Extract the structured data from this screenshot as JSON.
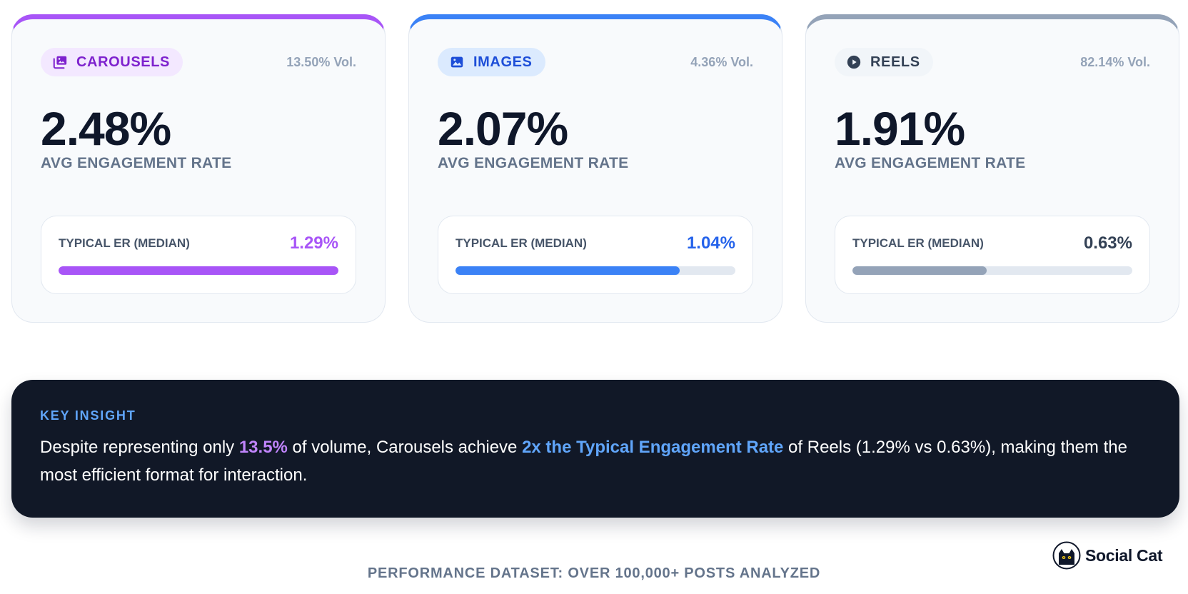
{
  "cards": [
    {
      "key": "carousels",
      "badge_label": "CAROUSELS",
      "badge_icon": "carousel-icon",
      "volume": "13.50% Vol.",
      "avg_rate": "2.48%",
      "avg_label": "AVG ENGAGEMENT RATE",
      "median_label": "TYPICAL ER (MEDIAN)",
      "median_value": "1.29%",
      "median_fraction": 1.0,
      "accent": "#a855f7"
    },
    {
      "key": "images",
      "badge_label": "IMAGES",
      "badge_icon": "image-icon",
      "volume": "4.36% Vol.",
      "avg_rate": "2.07%",
      "avg_label": "AVG ENGAGEMENT RATE",
      "median_label": "TYPICAL ER (MEDIAN)",
      "median_value": "1.04%",
      "median_fraction": 0.8,
      "accent": "#3b82f6"
    },
    {
      "key": "reels",
      "badge_label": "REELS",
      "badge_icon": "play-icon",
      "volume": "82.14% Vol.",
      "avg_rate": "1.91%",
      "avg_label": "AVG ENGAGEMENT RATE",
      "median_label": "TYPICAL ER (MEDIAN)",
      "median_value": "0.63%",
      "median_fraction": 0.48,
      "accent": "#94a3b8"
    }
  ],
  "insight": {
    "label": "KEY INSIGHT",
    "text_1": "Despite representing only ",
    "highlight_1": "13.5%",
    "text_2": " of volume, Carousels achieve ",
    "highlight_2": "2x the Typical Engagement Rate",
    "text_3": " of Reels (1.29% vs 0.63%), making them the most efficient format for interaction."
  },
  "footer": {
    "text": "PERFORMANCE DATASET: OVER 100,000+ POSTS ANALYZED"
  },
  "brand": {
    "name": "Social Cat",
    "icon": "cat-logo-icon"
  }
}
